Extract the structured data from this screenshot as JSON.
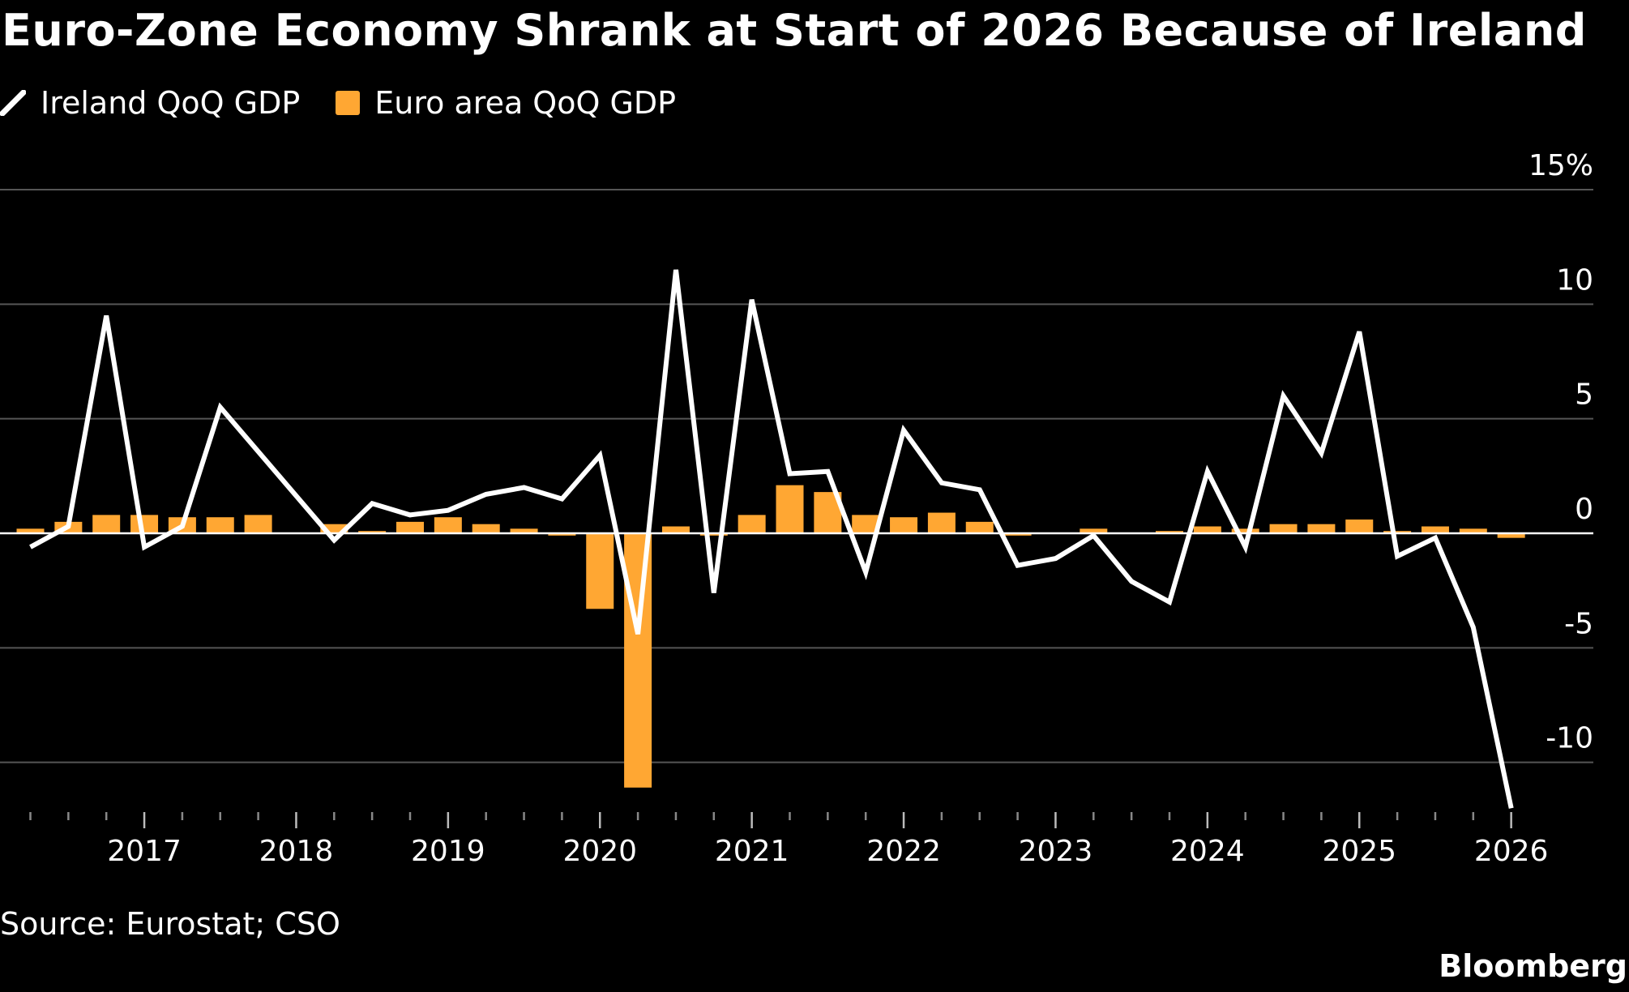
{
  "title": "Euro-Zone Economy Shrank at Start of 2026 Because of Ireland",
  "legend": [
    {
      "name": "Ireland QoQ GDP",
      "color": "#ffffff",
      "icon": "line-swatch-icon"
    },
    {
      "name": "Euro area QoQ GDP",
      "color": "#ffa733",
      "icon": "square-swatch-icon"
    }
  ],
  "source": "Source: Eurostat; CSO",
  "brand": "Bloomberg",
  "chart_data": {
    "type": "bar+line",
    "unit": "%",
    "ylim": [
      -12.2,
      15
    ],
    "yticks": [
      {
        "value": 15,
        "label": "15%"
      },
      {
        "value": 10,
        "label": "10"
      },
      {
        "value": 5,
        "label": "5"
      },
      {
        "value": 0,
        "label": "0"
      },
      {
        "value": -5,
        "label": "-5"
      },
      {
        "value": -10,
        "label": "-10"
      }
    ],
    "xticks": [
      "2017",
      "2018",
      "2019",
      "2020",
      "2021",
      "2022",
      "2023",
      "2024",
      "2025",
      "2026"
    ],
    "quarters": [
      "2016Q2",
      "2016Q3",
      "2016Q4",
      "2017Q1",
      "2017Q2",
      "2017Q3",
      "2017Q4",
      "2018Q1",
      "2018Q2",
      "2018Q3",
      "2018Q4",
      "2019Q1",
      "2019Q2",
      "2019Q3",
      "2019Q4",
      "2020Q1",
      "2020Q2",
      "2020Q3",
      "2020Q4",
      "2021Q1",
      "2021Q2",
      "2021Q3",
      "2021Q4",
      "2022Q1",
      "2022Q2",
      "2022Q3",
      "2022Q4",
      "2023Q1",
      "2023Q2",
      "2023Q3",
      "2023Q4",
      "2024Q1",
      "2024Q2",
      "2024Q3",
      "2024Q4",
      "2025Q1",
      "2025Q2",
      "2025Q3",
      "2025Q4",
      "2026Q1"
    ],
    "grid": true,
    "series": [
      {
        "name": "Euro area QoQ GDP",
        "kind": "bar",
        "color": "#ffa733",
        "values": [
          0.2,
          0.5,
          0.8,
          0.8,
          0.7,
          0.7,
          0.8,
          0.0,
          0.4,
          0.1,
          0.5,
          0.7,
          0.4,
          0.2,
          -0.1,
          -3.3,
          -11.1,
          0.3,
          -0.1,
          0.8,
          2.1,
          1.8,
          0.8,
          0.7,
          0.9,
          0.5,
          -0.1,
          0.0,
          0.2,
          0.0,
          0.1,
          0.3,
          0.2,
          0.4,
          0.4,
          0.6,
          0.1,
          0.3,
          0.2,
          -0.2
        ]
      },
      {
        "name": "Ireland QoQ GDP",
        "kind": "line",
        "color": "#ffffff",
        "values": [
          -0.6,
          0.3,
          9.5,
          -0.6,
          0.3,
          5.5,
          null,
          null,
          -0.3,
          1.3,
          0.8,
          1.0,
          1.7,
          2.0,
          1.5,
          3.4,
          -4.4,
          11.5,
          -2.6,
          10.2,
          2.6,
          2.7,
          -1.7,
          4.5,
          2.2,
          1.9,
          -1.4,
          -1.1,
          -0.1,
          -2.1,
          -3.0,
          2.7,
          -0.6,
          6.0,
          3.5,
          8.8,
          -1.0,
          -0.2,
          -4.1,
          -12.0
        ]
      }
    ]
  }
}
